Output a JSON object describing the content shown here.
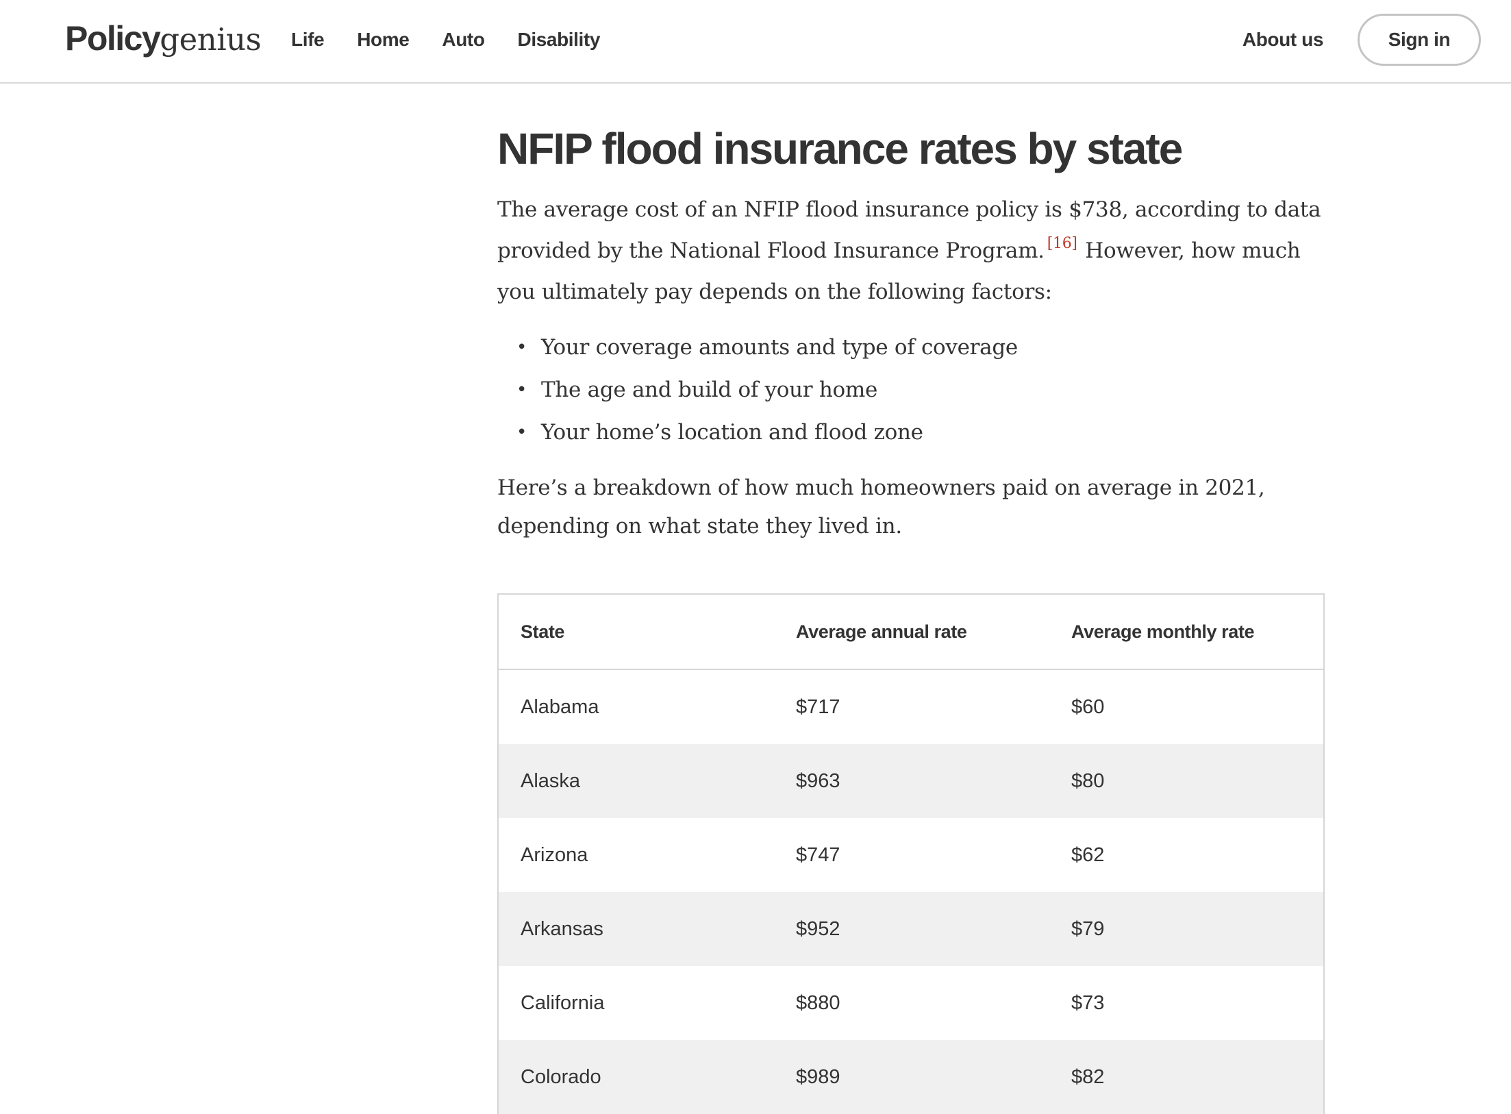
{
  "header": {
    "logo_bold": "Policy",
    "logo_light": "genius",
    "nav": [
      {
        "label": "Life"
      },
      {
        "label": "Home"
      },
      {
        "label": "Auto"
      },
      {
        "label": "Disability"
      }
    ],
    "about_label": "About us",
    "signin_label": "Sign in"
  },
  "article": {
    "title": "NFIP flood insurance rates by state",
    "intro_part1": "The average cost of an NFIP flood insurance policy is $738, according to data provided by the National Flood Insurance Program.",
    "citation": "[16]",
    "intro_part2": "However, how much you ultimately pay depends on the following factors:",
    "factors": [
      "Your coverage amounts and type of coverage",
      "The age and build of your home",
      "Your home’s location and flood zone"
    ],
    "breakdown": "Here’s a breakdown of how much homeowners paid on average in 2021, depending on what state they lived in."
  },
  "table": {
    "headers": [
      "State",
      "Average annual rate",
      "Average monthly rate"
    ],
    "rows": [
      [
        "Alabama",
        "$717",
        "$60"
      ],
      [
        "Alaska",
        "$963",
        "$80"
      ],
      [
        "Arizona",
        "$747",
        "$62"
      ],
      [
        "Arkansas",
        "$952",
        "$79"
      ],
      [
        "California",
        "$880",
        "$73"
      ],
      [
        "Colorado",
        "$989",
        "$82"
      ]
    ]
  }
}
